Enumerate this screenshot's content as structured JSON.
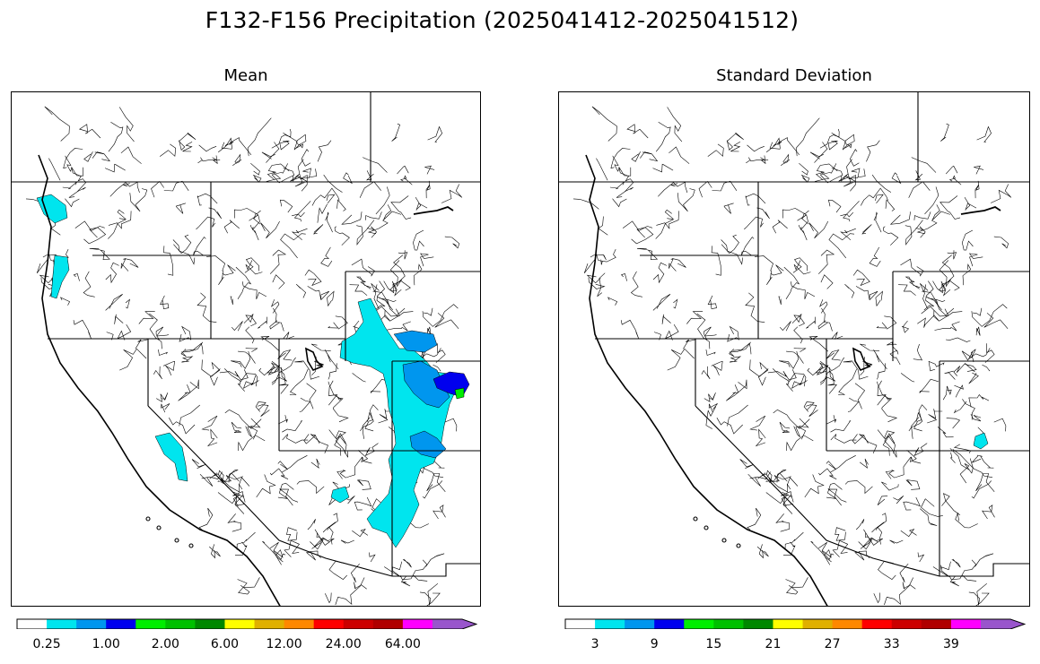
{
  "title": "F132-F156 Precipitation (2025041412-2025041512)",
  "panels": [
    {
      "id": "mean",
      "title": "Mean",
      "colorbar": {
        "colors": [
          "#ffffff",
          "#00e5ee",
          "#0096ee",
          "#0000ee",
          "#00ee00",
          "#00c000",
          "#008800",
          "#ffff00",
          "#e0b000",
          "#ff8800",
          "#ff0000",
          "#cc0000",
          "#b00000",
          "#ff00ff",
          "#9955cc"
        ],
        "tick_labels": [
          "0.25",
          "1.00",
          "2.00",
          "6.00",
          "12.00",
          "24.00",
          "64.00"
        ],
        "extend": "max"
      }
    },
    {
      "id": "std",
      "title": "Standard Deviation",
      "colorbar": {
        "colors": [
          "#ffffff",
          "#00e5ee",
          "#0096ee",
          "#0000ee",
          "#00ee00",
          "#00c000",
          "#008800",
          "#ffff00",
          "#e0b000",
          "#ff8800",
          "#ff0000",
          "#cc0000",
          "#b00000",
          "#ff00ff",
          "#9955cc"
        ],
        "tick_labels": [
          "3",
          "9",
          "15",
          "21",
          "27",
          "33",
          "39"
        ],
        "extend": "max"
      }
    }
  ]
}
